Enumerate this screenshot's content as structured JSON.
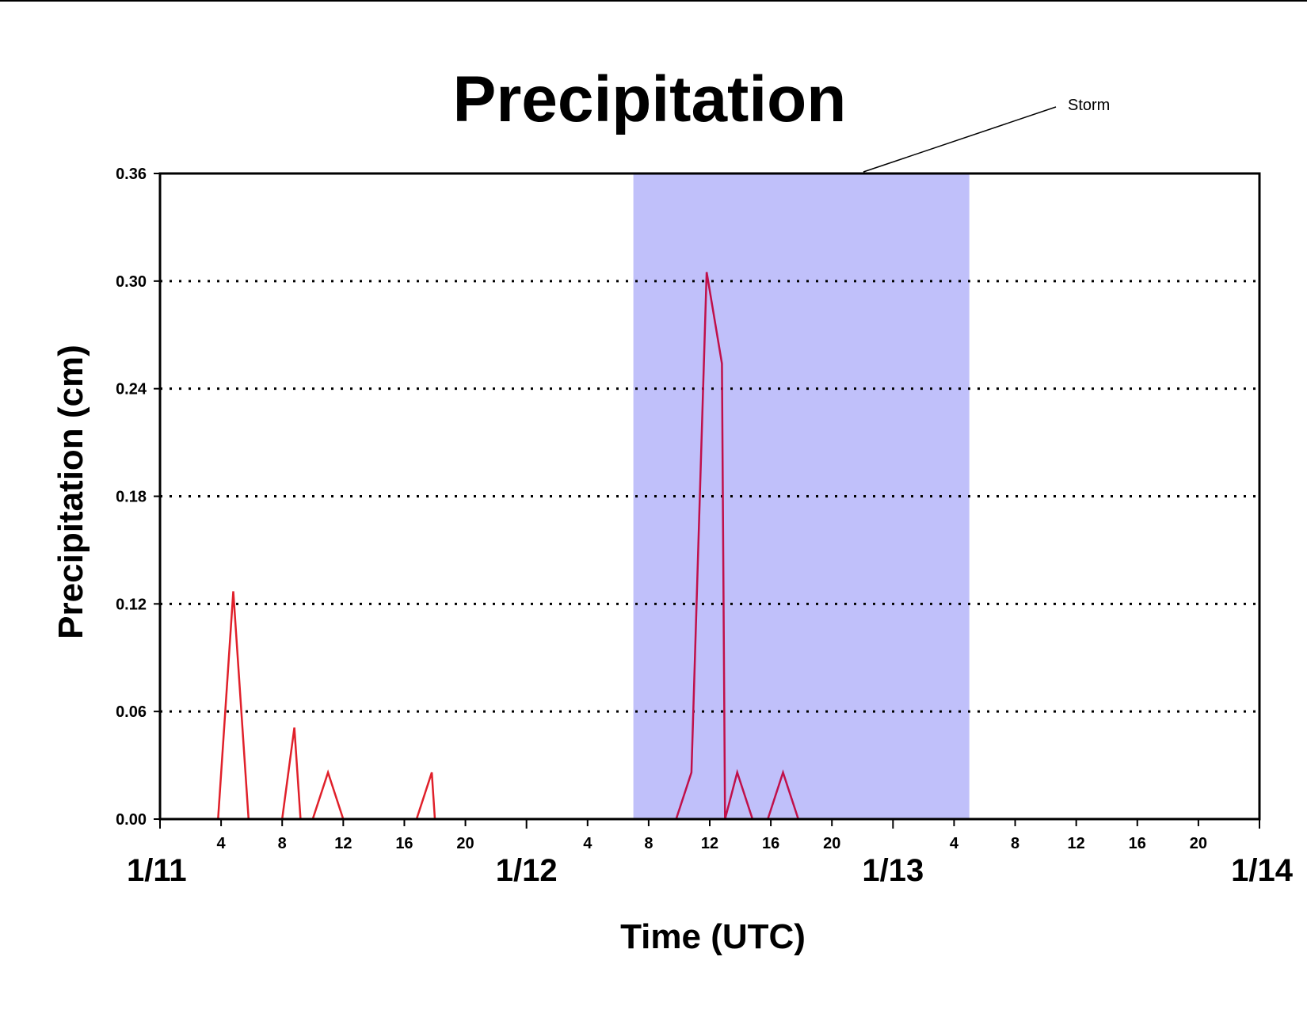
{
  "chart_data": {
    "type": "line",
    "title": "Precipitation",
    "xlabel": "Time (UTC)",
    "ylabel": "Precipitation (cm)",
    "ylim": [
      0,
      0.36
    ],
    "yticks": [
      "0.00",
      "0.06",
      "0.12",
      "0.18",
      "0.24",
      "0.30",
      "0.36"
    ],
    "xlim_hours_from_1_11_00utc": [
      0,
      72
    ],
    "date_labels": [
      "1/11",
      "1/12",
      "1/13",
      "1/14"
    ],
    "hour_ticks": [
      "4",
      "8",
      "12",
      "16",
      "20"
    ],
    "grid": "horizontal dotted",
    "annotation": {
      "text": "Storm",
      "start": "1/12 07 UTC",
      "end": "1/13 05 UTC",
      "start_hour": 31,
      "end_hour": 53,
      "color": "#c0c0fa"
    },
    "series": [
      {
        "color": "#e0202a",
        "x": [
          0,
          3.8,
          4.8,
          5.8,
          8,
          8.8,
          9.2,
          10,
          11,
          12,
          16.8,
          17.8,
          18,
          72
        ],
        "y": [
          0,
          0,
          0.127,
          0,
          0,
          0.051,
          0,
          0,
          0.026,
          0,
          0,
          0.026,
          0,
          0
        ]
      },
      {
        "color": "#c0104a",
        "x": [
          0,
          33.8,
          34.8,
          35.8,
          36.8,
          37,
          37.8,
          38.8,
          39.8,
          40.8,
          41.8,
          72
        ],
        "y": [
          0,
          0,
          0.026,
          0.305,
          0.254,
          0,
          0.026,
          0,
          0,
          0.026,
          0,
          0
        ]
      }
    ]
  }
}
